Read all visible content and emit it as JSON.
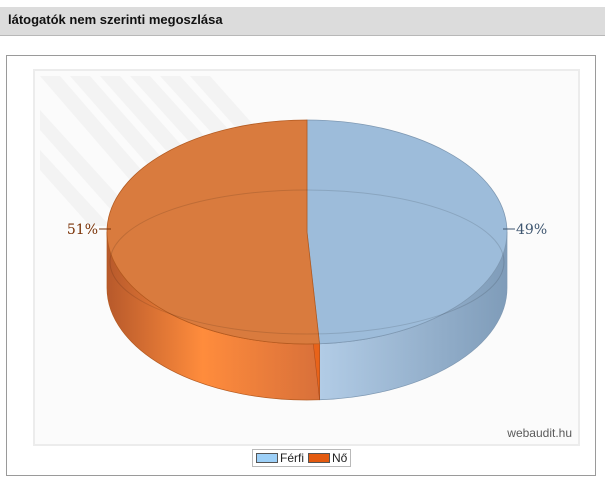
{
  "header": {
    "title": "látogatók nem szerinti megoszlása"
  },
  "credit": "webaudit.hu",
  "colors": {
    "ferfi": "#9dbcda",
    "no": "#d97b3e",
    "no_label": "#7a3206",
    "ferfi_label": "#3e5670"
  },
  "chart_data": {
    "type": "pie",
    "style": "3d",
    "slices": [
      {
        "name": "Férfi",
        "value": 49,
        "label": "49%"
      },
      {
        "name": "Nő",
        "value": 51,
        "label": "51%"
      }
    ],
    "legend": {
      "placement": "bottom-center",
      "entries": [
        "Férfi",
        "Nő"
      ]
    }
  }
}
